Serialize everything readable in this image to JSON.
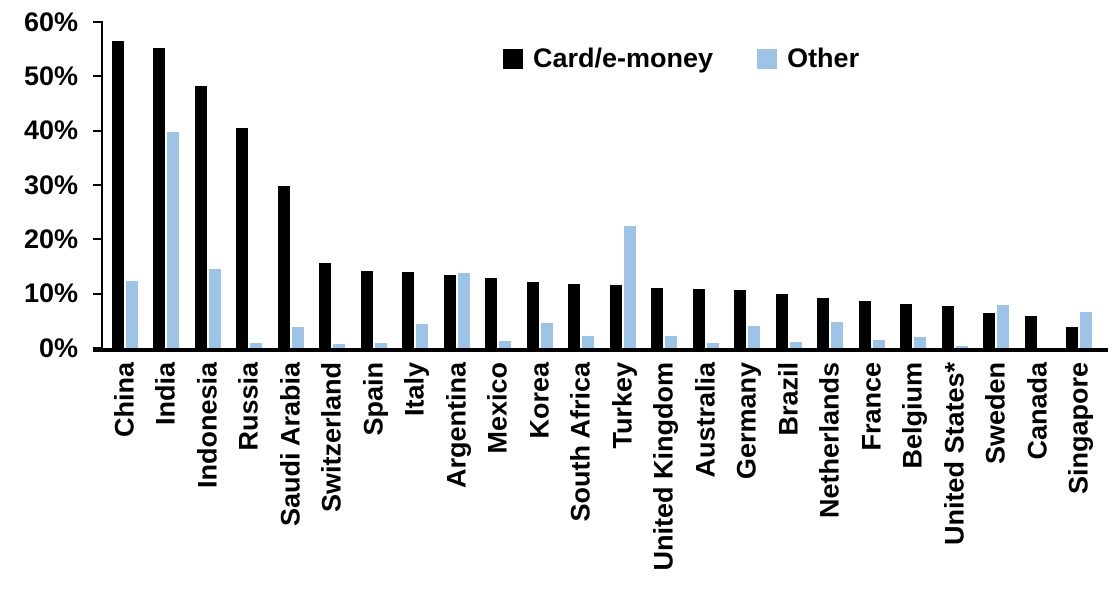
{
  "chart_data": {
    "type": "bar",
    "title": "",
    "xlabel": "",
    "ylabel": "",
    "ylim": [
      0,
      60
    ],
    "ytick_labels": [
      "60%",
      "50%",
      "40%",
      "30%",
      "20%",
      "10%",
      "0%"
    ],
    "grid": false,
    "legend_position": "top-center",
    "categories": [
      "China",
      "India",
      "Indonesia",
      "Russia",
      "Saudi Arabia",
      "Switzerland",
      "Spain",
      "Italy",
      "Argentina",
      "Mexico",
      "Korea",
      "South Africa",
      "Turkey",
      "United Kingdom",
      "Australia",
      "Germany",
      "Brazil",
      "Netherlands",
      "France",
      "Belgium",
      "United States*",
      "Sweden",
      "Canada",
      "Singapore"
    ],
    "series": [
      {
        "name": "Card/e-money",
        "color": "#000000",
        "values": [
          56.5,
          55.2,
          48.3,
          40.5,
          29.8,
          15.6,
          14.1,
          14.0,
          13.4,
          12.9,
          12.2,
          11.7,
          11.6,
          11.0,
          10.8,
          10.6,
          10.0,
          9.3,
          8.6,
          8.1,
          7.8,
          6.4,
          5.9,
          3.9
        ]
      },
      {
        "name": "Other",
        "color": "#9DC3E6",
        "values": [
          12.3,
          39.8,
          14.5,
          1.0,
          3.8,
          0.8,
          1.0,
          4.5,
          13.8,
          1.3,
          4.6,
          2.3,
          22.5,
          2.3,
          1.0,
          4.0,
          1.1,
          4.8,
          1.5,
          2.0,
          0.3,
          8.0,
          0,
          6.6
        ]
      }
    ]
  },
  "legend": {
    "card_label": "Card/e-money",
    "other_label": "Other"
  },
  "colors": {
    "card": "#000000",
    "other": "#9DC3E6",
    "axis": "#000000",
    "background": "#FFFFFF"
  }
}
